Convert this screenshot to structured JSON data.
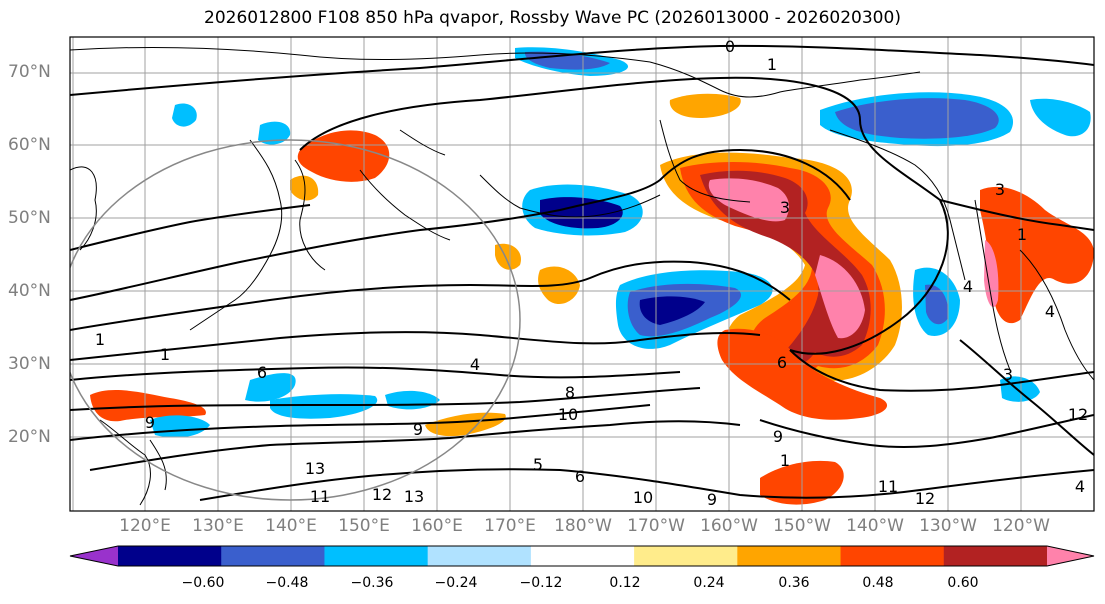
{
  "title": "2026012800 F108 850 hPa qvapor, Rossby Wave PC (2026013000 - 2026020300)",
  "lat_labels": [
    "70°N",
    "60°N",
    "50°N",
    "40°N",
    "30°N",
    "20°N"
  ],
  "lon_labels": [
    "120°E",
    "130°E",
    "140°E",
    "150°E",
    "160°E",
    "170°E",
    "180°W",
    "170°W",
    "160°W",
    "150°W",
    "140°W",
    "130°W",
    "120°W"
  ],
  "colorbar": {
    "ticks": [
      "−0.60",
      "−0.48",
      "−0.36",
      "−0.24",
      "−0.12",
      "0.12",
      "0.24",
      "0.36",
      "0.48",
      "0.60"
    ],
    "colors": [
      "#9932cc",
      "#00008b",
      "#3a5fcd",
      "#00bfff",
      "#b0e2ff",
      "#ffffff",
      "#ffec8b",
      "#ffa500",
      "#ff4500",
      "#b22222",
      "#ff82ab"
    ]
  },
  "contour_labels": [
    "0",
    "1",
    "1",
    "4",
    "6",
    "9",
    "1",
    "4",
    "3",
    "9",
    "1",
    "11",
    "12",
    "13",
    "12",
    "5",
    "6",
    "10",
    "9",
    "11",
    "12",
    "8",
    "9",
    "3",
    "4",
    "4",
    "1",
    "6",
    "10",
    "13",
    "3"
  ],
  "colors": {
    "axis_label": "#7f7f7f",
    "grid": "#a0a0a0",
    "contour": "#000000"
  }
}
